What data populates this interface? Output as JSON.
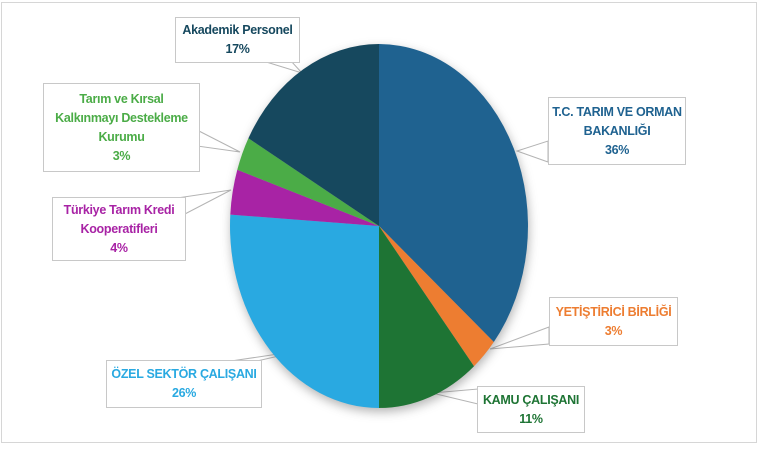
{
  "figure": {
    "background_color": "#ffffff",
    "frame_border_color": "#d6d6d6",
    "label_box_border_color": "#c8c8c8",
    "leader_line_color": "#b4b4b4"
  },
  "chart_data": {
    "type": "pie",
    "title": "",
    "start_angle_deg": 0,
    "direction": "clockwise",
    "legend_position": "callout-labels",
    "units": "%",
    "slices": [
      {
        "label": "T.C. TARIM VE ORMAN BAKANLIĞI",
        "value": 36,
        "color": "#1F6290"
      },
      {
        "label": "YETİŞTİRİCİ BİRLİĞİ",
        "value": 3,
        "color": "#ED7D31"
      },
      {
        "label": "KAMU ÇALIŞANI",
        "value": 11,
        "color": "#1E7434"
      },
      {
        "label": "ÖZEL SEKTÖR ÇALIŞANI",
        "value": 26,
        "color": "#29A9E1"
      },
      {
        "label": "Türkiye Tarım Kredi Kooperatifleri",
        "value": 4,
        "color": "#A823A5"
      },
      {
        "label": "Tarım ve Kırsal Kalkınmayı Destekleme Kurumu",
        "value": 3,
        "color": "#4BAC47"
      },
      {
        "label": "Akademik Personel",
        "value": 17,
        "color": "#16485E"
      }
    ]
  },
  "callouts": [
    {
      "lines": [
        "T.C. TARIM VE ORMAN",
        "BAKANLIĞI"
      ],
      "pct": "36%"
    },
    {
      "lines": [
        "YETİŞTİRİCİ BİRLİĞİ"
      ],
      "pct": "3%"
    },
    {
      "lines": [
        "KAMU ÇALIŞANI"
      ],
      "pct": "11%"
    },
    {
      "lines": [
        "ÖZEL SEKTÖR ÇALIŞANI"
      ],
      "pct": "26%"
    },
    {
      "lines": [
        "Türkiye Tarım Kredi",
        "Kooperatifleri"
      ],
      "pct": "4%"
    },
    {
      "lines": [
        "Tarım ve Kırsal",
        "Kalkınmayı Destekleme",
        "Kurumu"
      ],
      "pct": "3%"
    },
    {
      "lines": [
        "Akademik Personel"
      ],
      "pct": "17%"
    }
  ]
}
